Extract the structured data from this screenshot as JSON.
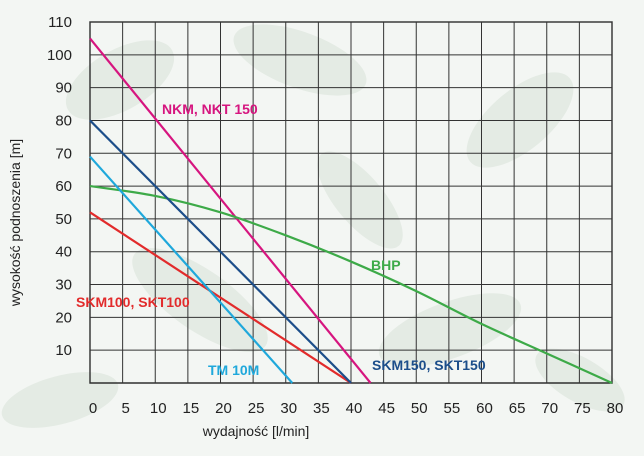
{
  "chart_data": {
    "type": "line",
    "xlabel": "wydajność [l/min]",
    "ylabel": "wysokość podnoszenia [m]",
    "xlim": [
      0,
      80
    ],
    "ylim": [
      0,
      110
    ],
    "x_ticks": [
      0,
      5,
      10,
      15,
      20,
      25,
      30,
      35,
      40,
      45,
      50,
      55,
      60,
      65,
      70,
      75,
      80
    ],
    "y_ticks": [
      10,
      20,
      30,
      40,
      50,
      60,
      70,
      80,
      90,
      100,
      110
    ],
    "grid": true,
    "legend": "inline labels",
    "series": [
      {
        "name": "NKM, NKT 150",
        "color": "#d6157f",
        "x": [
          0,
          43
        ],
        "y": [
          105,
          0
        ]
      },
      {
        "name": "BHP",
        "color": "#3daa48",
        "x": [
          0,
          10,
          20,
          30,
          40,
          50,
          60,
          70,
          80
        ],
        "y": [
          60,
          57,
          52,
          45,
          37,
          28,
          18,
          9,
          0
        ]
      },
      {
        "name": "SKM100, SKT100",
        "color": "#e22b2b",
        "x": [
          0,
          40
        ],
        "y": [
          52,
          0
        ]
      },
      {
        "name": "TM 10M",
        "color": "#1fa8db",
        "x": [
          0,
          31
        ],
        "y": [
          69,
          0
        ]
      },
      {
        "name": "SKM150, SKT150",
        "color": "#1c4e8a",
        "x": [
          0,
          40
        ],
        "y": [
          80,
          0
        ]
      }
    ]
  }
}
